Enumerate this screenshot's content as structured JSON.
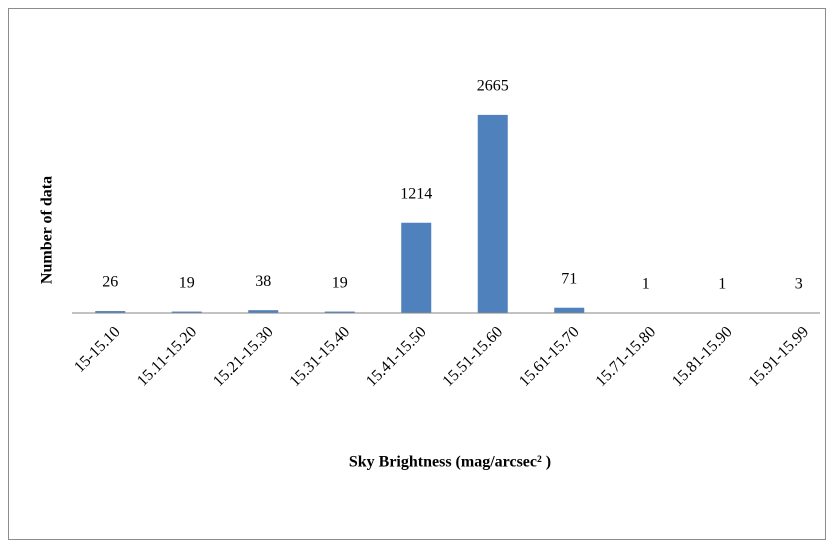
{
  "chart_data": {
    "type": "bar",
    "categories": [
      "15-15.10",
      "15.11-15.20",
      "15.21-15.30",
      "15.31-15.40",
      "15.41-15.50",
      "15.51-15.60",
      "15.61-15.70",
      "15.71-15.80",
      "15.81-15.90",
      "15.91-15.99"
    ],
    "values": [
      26,
      19,
      38,
      19,
      1214,
      2665,
      71,
      1,
      1,
      3
    ],
    "color": "#4f81bd",
    "xlabel": "Sky Brightness (mag/arcsec² )",
    "ylabel": "Number of data",
    "ylim": [
      0,
      3000
    ]
  }
}
